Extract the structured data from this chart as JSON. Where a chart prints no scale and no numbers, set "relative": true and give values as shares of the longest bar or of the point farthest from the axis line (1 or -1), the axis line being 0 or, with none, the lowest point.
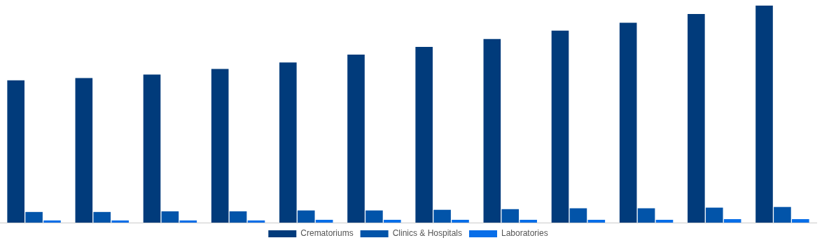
{
  "chart_data": {
    "type": "bar",
    "relative": true,
    "legend": "bottom",
    "grid": false,
    "categories": [
      null,
      null,
      null,
      null,
      null,
      null,
      null,
      null,
      null,
      null,
      null,
      null
    ],
    "series": [
      {
        "name": "Crematoriums",
        "color": "#013b7b",
        "values": [
          0.656,
          0.666,
          0.682,
          0.708,
          0.738,
          0.774,
          0.81,
          0.846,
          0.885,
          0.921,
          0.961,
          1
        ]
      },
      {
        "name": "Clinics & Hospitals",
        "color": "#0254a9",
        "values": [
          0.049,
          0.049,
          0.052,
          0.052,
          0.056,
          0.056,
          0.059,
          0.062,
          0.066,
          0.066,
          0.069,
          0.072
        ]
      },
      {
        "name": "Laboratories",
        "color": "#086ee8",
        "values": [
          0.01,
          0.01,
          0.01,
          0.01,
          0.013,
          0.013,
          0.013,
          0.013,
          0.013,
          0.013,
          0.016,
          0.016
        ]
      }
    ]
  }
}
